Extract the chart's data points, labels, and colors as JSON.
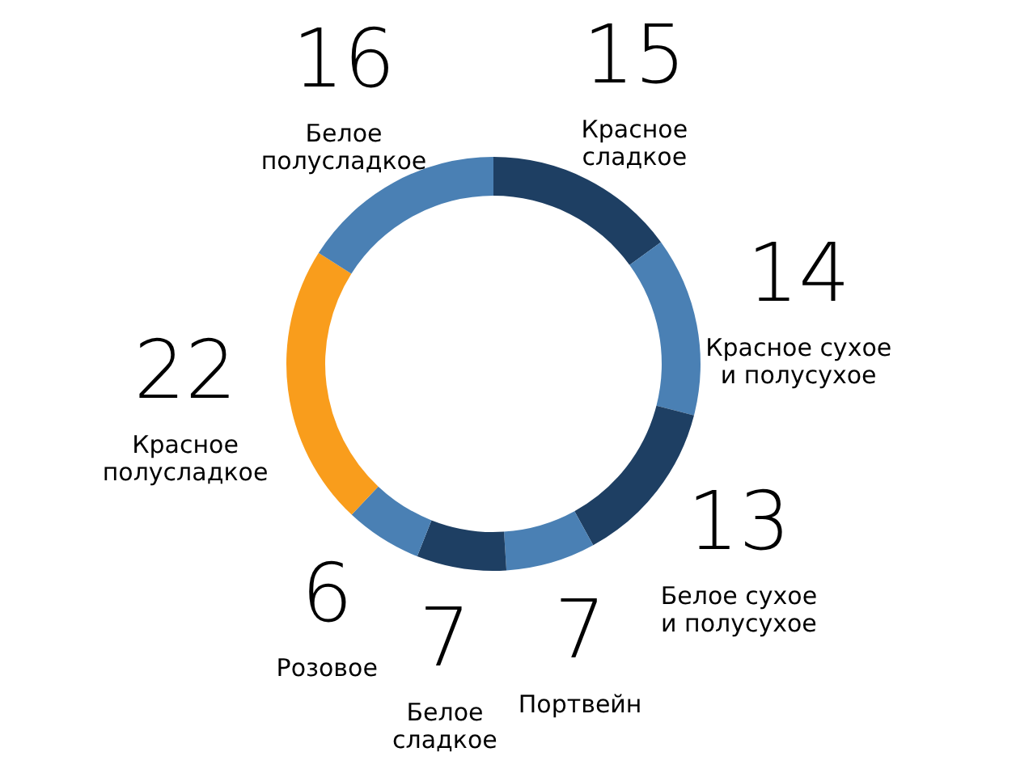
{
  "chart_data": {
    "type": "donut",
    "categories": [
      "Красное сладкое",
      "Красное сухое и полусухое",
      "Белое сухое и полусухое",
      "Портвейн",
      "Белое сладкое",
      "Розовое",
      "Красное полусладкое",
      "Белое полусладкое"
    ],
    "values": [
      15,
      14,
      13,
      7,
      7,
      6,
      22,
      16
    ],
    "colors": [
      "#1e3f63",
      "#4a80b4",
      "#1e3f63",
      "#4a80b4",
      "#1e3f63",
      "#4a80b4",
      "#f99d1c",
      "#4a80b4"
    ],
    "data_labels": true,
    "legend": false
  }
}
